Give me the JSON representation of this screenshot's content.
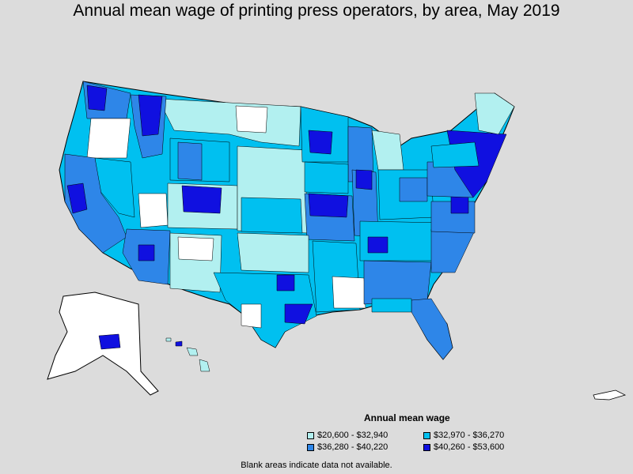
{
  "title": "Annual mean wage of printing press operators, by area, May 2019",
  "legend": {
    "title": "Annual mean wage",
    "items": [
      {
        "label": "$20,600 - $32,940",
        "color": "#b2f0f0"
      },
      {
        "label": "$32,970 - $36,270",
        "color": "#00c0f0"
      },
      {
        "label": "$36,280 - $40,220",
        "color": "#2e86e8"
      },
      {
        "label": "$40,260 - $53,600",
        "color": "#1010e0"
      }
    ]
  },
  "note": "Blank areas indicate data not available.",
  "colors": {
    "background": "#dcdcdc",
    "blank": "#ffffff",
    "border": "#000000"
  }
}
